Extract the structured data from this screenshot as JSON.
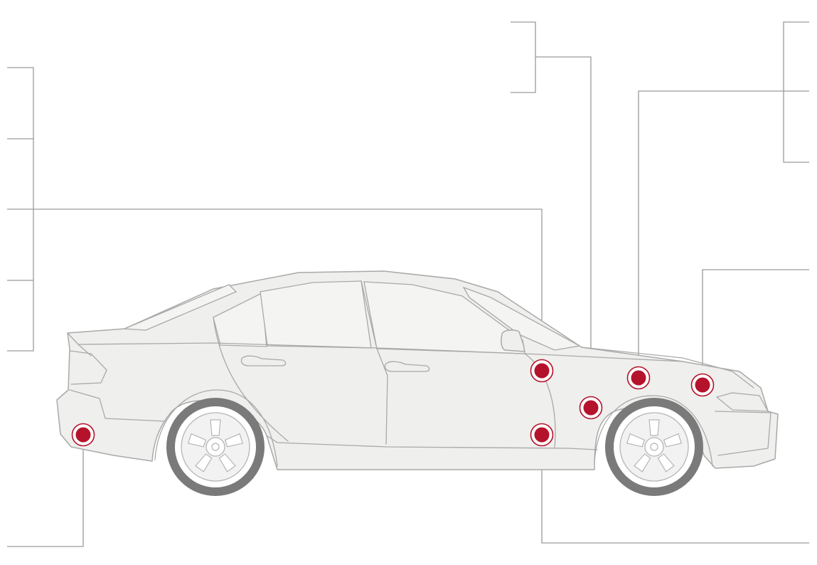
{
  "diagram": {
    "colors": {
      "marker_fill": "#b5122b",
      "marker_ring": "#b5122b",
      "leader_line": "#9a9a9a",
      "car_outline": "#a9a9a9",
      "car_fill": "#efefed",
      "tire": "#7a7a7a"
    },
    "markers": [
      {
        "name": "rear-bumper-marker"
      },
      {
        "name": "door-upper-marker"
      },
      {
        "name": "door-lower-marker"
      },
      {
        "name": "front-wheel-arch-marker"
      },
      {
        "name": "front-fender-marker"
      },
      {
        "name": "hood-front-marker"
      }
    ]
  }
}
